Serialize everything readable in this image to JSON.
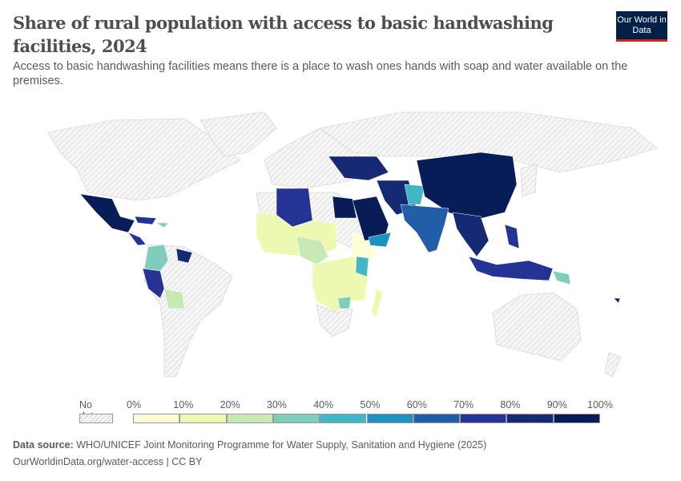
{
  "header": {
    "title": "Share of rural population with access to basic handwashing facilities, 2024",
    "subtitle": "Access to basic handwashing facilities means there is a place to wash ones hands with soap and water available on the premises.",
    "logo": "Our World in Data"
  },
  "legend": {
    "no_data": "No data",
    "bins": [
      {
        "label": "0%",
        "color": "#ffffd8"
      },
      {
        "label": "10%",
        "color": "#edf8b1"
      },
      {
        "label": "20%",
        "color": "#c7e9b4"
      },
      {
        "label": "30%",
        "color": "#7fcdbb"
      },
      {
        "label": "40%",
        "color": "#41b6c4"
      },
      {
        "label": "50%",
        "color": "#1d91c0"
      },
      {
        "label": "60%",
        "color": "#225ea8"
      },
      {
        "label": "70%",
        "color": "#253494"
      },
      {
        "label": "80%",
        "color": "#152a72"
      },
      {
        "label": "90%",
        "color": "#081d58"
      }
    ],
    "end_label": "100%"
  },
  "footer": {
    "source_label": "Data source:",
    "source": "WHO/UNICEF Joint Monitoring Programme for Water Supply, Sanitation and Hygiene (2025)",
    "link": "OurWorldinData.org/water-access | CC BY"
  }
}
